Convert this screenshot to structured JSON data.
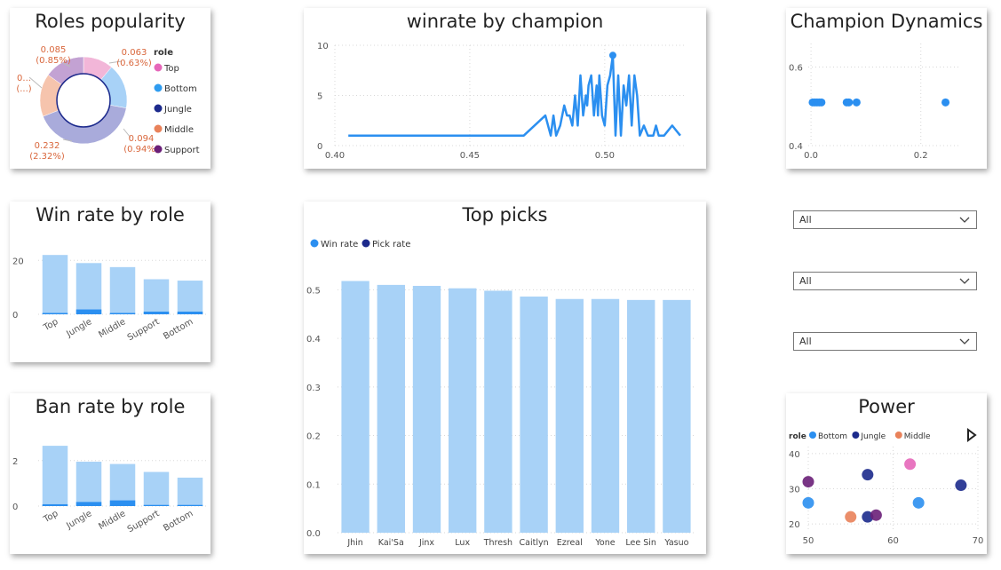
{
  "roles_popularity": {
    "title": "Roles popularity",
    "legend_title": "role",
    "chart_data": {
      "type": "pie",
      "title": "Roles popularity",
      "slices": [
        {
          "label": "Top",
          "value": 0.063,
          "percent_label": "(0.63%)",
          "value_label": "0.063",
          "color": "#f2b6d8"
        },
        {
          "label": "Bottom",
          "value": 0.094,
          "percent_label": "(0.94%)",
          "value_label": "0.094",
          "color": "#a8d2f7"
        },
        {
          "label": "Jungle",
          "value": 0.232,
          "percent_label": "(2.32%)",
          "value_label": "0.232",
          "color": "#a9abdb"
        },
        {
          "label": "Middle",
          "value": 0.09,
          "percent_label": "(...)",
          "value_label": "0...",
          "color": "#f6c4ad"
        },
        {
          "label": "Support",
          "value": 0.085,
          "percent_label": "(0.85%)",
          "value_label": "0.085",
          "color": "#c3a2d3"
        }
      ],
      "legend": [
        {
          "label": "Top",
          "color": "#e667b9"
        },
        {
          "label": "Bottom",
          "color": "#2f9cf0"
        },
        {
          "label": "Jungle",
          "color": "#1c2a8c"
        },
        {
          "label": "Middle",
          "color": "#e9825a"
        },
        {
          "label": "Support",
          "color": "#6a1f78"
        }
      ]
    }
  },
  "winrate_champion": {
    "title": "winrate by champion",
    "chart_data": {
      "type": "line",
      "title": "winrate by champion",
      "xlim": [
        0.4,
        0.53
      ],
      "ylim": [
        0,
        10
      ],
      "x_ticks": [
        "0.40",
        "0.45",
        "0.50"
      ],
      "y_ticks": [
        "0",
        "5",
        "10"
      ],
      "series": [
        {
          "color": "#2b8ff0",
          "points": [
            [
              0.405,
              1
            ],
            [
              0.47,
              1
            ],
            [
              0.478,
              3
            ],
            [
              0.48,
              1
            ],
            [
              0.481,
              3
            ],
            [
              0.482,
              1
            ],
            [
              0.4835,
              2
            ],
            [
              0.485,
              4
            ],
            [
              0.486,
              3
            ],
            [
              0.487,
              3
            ],
            [
              0.488,
              2
            ],
            [
              0.489,
              5
            ],
            [
              0.49,
              2
            ],
            [
              0.491,
              7
            ],
            [
              0.492,
              3
            ],
            [
              0.493,
              5
            ],
            [
              0.4935,
              4
            ],
            [
              0.494,
              6
            ],
            [
              0.495,
              7
            ],
            [
              0.496,
              3
            ],
            [
              0.497,
              6
            ],
            [
              0.4975,
              3
            ],
            [
              0.498,
              7
            ],
            [
              0.499,
              3
            ],
            [
              0.5,
              2
            ],
            [
              0.501,
              6
            ],
            [
              0.502,
              7
            ],
            [
              0.503,
              9
            ],
            [
              0.504,
              1
            ],
            [
              0.505,
              7
            ],
            [
              0.506,
              1
            ],
            [
              0.507,
              6
            ],
            [
              0.508,
              4
            ],
            [
              0.509,
              7
            ],
            [
              0.51,
              2
            ],
            [
              0.511,
              7
            ],
            [
              0.512,
              5
            ],
            [
              0.513,
              1
            ],
            [
              0.5145,
              2
            ],
            [
              0.516,
              1
            ],
            [
              0.518,
              1
            ],
            [
              0.519,
              2
            ],
            [
              0.52,
              1
            ],
            [
              0.522,
              1
            ],
            [
              0.525,
              2
            ],
            [
              0.528,
              1
            ]
          ],
          "marker": [
            0.503,
            9
          ]
        }
      ]
    }
  },
  "champion_dynamics": {
    "title": "Champion Dynamics",
    "chart_data": {
      "type": "scatter",
      "title": "Champion Dynamics",
      "xlim": [
        -0.005,
        0.27
      ],
      "ylim": [
        0.4,
        0.66
      ],
      "x_ticks": [
        "0.0",
        "0.2"
      ],
      "y_ticks": [
        "0.4",
        "0.6"
      ],
      "points": [
        [
          0.003,
          0.51
        ],
        [
          0.007,
          0.51
        ],
        [
          0.011,
          0.51
        ],
        [
          0.015,
          0.51
        ],
        [
          0.019,
          0.51
        ],
        [
          0.065,
          0.51
        ],
        [
          0.069,
          0.51
        ],
        [
          0.083,
          0.51
        ],
        [
          0.245,
          0.51
        ]
      ],
      "color": "#2b8ff0"
    }
  },
  "win_rate_role": {
    "title": "Win rate by role",
    "chart_data": {
      "type": "bar",
      "title": "Win rate by role",
      "categories": [
        "Top",
        "Jungle",
        "Middle",
        "Support",
        "Bottom"
      ],
      "ylim": [
        0,
        27
      ],
      "y_ticks": [
        "0",
        "20"
      ],
      "series": [
        {
          "values": [
            22,
            19,
            17.5,
            13,
            12.5
          ],
          "color": "#a8d2f7"
        },
        {
          "values": [
            0.5,
            1.8,
            0.5,
            1.0,
            1.0
          ],
          "color": "#2b8ff0"
        }
      ]
    }
  },
  "ban_rate_role": {
    "title": "Ban rate by role",
    "chart_data": {
      "type": "bar",
      "title": "Ban rate by role",
      "categories": [
        "Top",
        "Jungle",
        "Middle",
        "Support",
        "Bottom"
      ],
      "ylim": [
        0,
        3.2
      ],
      "y_ticks": [
        "0",
        "2"
      ],
      "series": [
        {
          "values": [
            2.65,
            1.95,
            1.85,
            1.5,
            1.25
          ],
          "color": "#a8d2f7"
        },
        {
          "values": [
            0.08,
            0.18,
            0.25,
            0.05,
            0.05
          ],
          "color": "#2b8ff0"
        }
      ]
    }
  },
  "top_picks": {
    "title": "Top picks",
    "chart_data": {
      "type": "bar",
      "title": "Top picks",
      "categories": [
        "Jhin",
        "Kai'Sa",
        "Jinx",
        "Lux",
        "Thresh",
        "Caitlyn",
        "Ezreal",
        "Yone",
        "Lee Sin",
        "Yasuo"
      ],
      "ylim": [
        0,
        0.55
      ],
      "y_ticks": [
        "0.0",
        "0.1",
        "0.2",
        "0.3",
        "0.4",
        "0.5"
      ],
      "legend": [
        {
          "label": "Win rate",
          "color": "#2b8ff0"
        },
        {
          "label": "Pick rate",
          "color": "#1c2a8c"
        }
      ],
      "series": [
        {
          "name": "Win rate",
          "values": [
            0.518,
            0.51,
            0.508,
            0.503,
            0.498,
            0.486,
            0.481,
            0.481,
            0.479,
            0.479
          ],
          "color": "#a8d2f7"
        }
      ]
    }
  },
  "slicers": [
    {
      "value": "All"
    },
    {
      "value": "All"
    },
    {
      "value": "All"
    }
  ],
  "power": {
    "title": "Power",
    "legend_title": "role",
    "chart_data": {
      "type": "scatter",
      "title": "Power",
      "xlim": [
        50,
        70
      ],
      "ylim": [
        18,
        42
      ],
      "x_ticks": [
        "50",
        "60",
        "70"
      ],
      "y_ticks": [
        "20",
        "30",
        "40"
      ],
      "legend": [
        {
          "label": "Bottom",
          "color": "#2b8ff0"
        },
        {
          "label": "Jungle",
          "color": "#1c2a8c"
        },
        {
          "label": "Middle",
          "color": "#e9825a"
        }
      ],
      "points": [
        {
          "x": 50,
          "y": 32,
          "color": "#6a1f78"
        },
        {
          "x": 50,
          "y": 26,
          "color": "#2b8ff0"
        },
        {
          "x": 55,
          "y": 22,
          "color": "#e9825a"
        },
        {
          "x": 57,
          "y": 34,
          "color": "#1c2a8c"
        },
        {
          "x": 57,
          "y": 22,
          "color": "#1c2a8c"
        },
        {
          "x": 58,
          "y": 22.5,
          "color": "#6a1f78"
        },
        {
          "x": 62,
          "y": 37,
          "color": "#e667b9"
        },
        {
          "x": 63,
          "y": 26,
          "color": "#2b8ff0"
        },
        {
          "x": 68,
          "y": 31,
          "color": "#1c2a8c"
        }
      ]
    }
  }
}
